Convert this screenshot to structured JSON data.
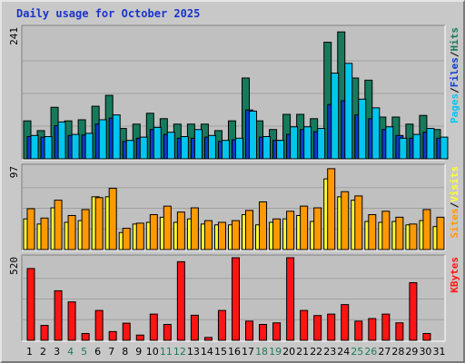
{
  "title": "Daily usage for October 2025",
  "colors": {
    "pages": "#00c6ee",
    "files": "#0a3cd2",
    "hits": "#177a5d",
    "visits": "#ffff30",
    "sites": "#ff9900",
    "kbytes": "#ff1414",
    "weekend_label": "#1f7a55",
    "weekday_label": "#000000",
    "separator": "#000000"
  },
  "chart_data": [
    {
      "type": "bar",
      "name": "hits-files-pages",
      "categories": [
        "1",
        "2",
        "3",
        "4",
        "5",
        "6",
        "7",
        "8",
        "9",
        "10",
        "11",
        "12",
        "13",
        "14",
        "15",
        "16",
        "17",
        "18",
        "19",
        "20",
        "21",
        "22",
        "23",
        "24",
        "25",
        "26",
        "27",
        "28",
        "29",
        "30",
        "31"
      ],
      "weekend_days": [
        "4",
        "5",
        "11",
        "12",
        "18",
        "19",
        "25",
        "26"
      ],
      "ymax": 241,
      "ytick_label": "241",
      "legend": [
        {
          "text": "Pages",
          "color": "#00c6ee"
        },
        {
          "text": "/",
          "color": "#000000"
        },
        {
          "text": "Files",
          "color": "#0a3cd2"
        },
        {
          "text": "/",
          "color": "#000000"
        },
        {
          "text": "Hits",
          "color": "#177a5d"
        }
      ],
      "series": [
        {
          "name": "Hits",
          "color": "#177a5d",
          "values": [
            70,
            52,
            95,
            70,
            72,
            97,
            117,
            56,
            64,
            84,
            74,
            64,
            64,
            64,
            52,
            70,
            149,
            70,
            54,
            82,
            82,
            74,
            215,
            234,
            149,
            145,
            77,
            77,
            64,
            80,
            54
          ]
        },
        {
          "name": "Files",
          "color": "#0a3cd2",
          "values": [
            41,
            40,
            61,
            43,
            44,
            64,
            75,
            32,
            38,
            54,
            45,
            38,
            38,
            40,
            32,
            35,
            90,
            40,
            34,
            45,
            54,
            50,
            100,
            107,
            81,
            74,
            54,
            43,
            38,
            49,
            38
          ]
        },
        {
          "name": "Pages",
          "color": "#00c6ee",
          "values": [
            43,
            41,
            68,
            45,
            47,
            72,
            81,
            34,
            40,
            58,
            49,
            41,
            54,
            43,
            34,
            38,
            88,
            41,
            34,
            59,
            59,
            56,
            158,
            176,
            110,
            94,
            59,
            38,
            45,
            56,
            40
          ]
        }
      ]
    },
    {
      "type": "bar",
      "name": "visits-sites",
      "categories": [
        "1",
        "2",
        "3",
        "4",
        "5",
        "6",
        "7",
        "8",
        "9",
        "10",
        "11",
        "12",
        "13",
        "14",
        "15",
        "16",
        "17",
        "18",
        "19",
        "20",
        "21",
        "22",
        "23",
        "24",
        "25",
        "26",
        "27",
        "28",
        "29",
        "30",
        "31"
      ],
      "ymax": 97,
      "ytick_label": "97",
      "legend": [
        {
          "text": "Sites",
          "color": "#ff9900"
        },
        {
          "text": "/",
          "color": "#000000"
        },
        {
          "text": "Visits",
          "color": "#ffff30"
        }
      ],
      "series": [
        {
          "name": "Visits",
          "color": "#ffff30",
          "values": [
            36,
            30,
            49,
            32,
            34,
            62,
            62,
            20,
            30,
            32,
            38,
            32,
            36,
            30,
            29,
            29,
            41,
            29,
            32,
            36,
            40,
            33,
            83,
            62,
            58,
            33,
            32,
            33,
            29,
            34,
            27
          ]
        },
        {
          "name": "Sites",
          "color": "#ff9900",
          "values": [
            48,
            37,
            58,
            40,
            47,
            61,
            72,
            25,
            31,
            41,
            51,
            44,
            49,
            34,
            32,
            34,
            46,
            56,
            36,
            45,
            51,
            49,
            95,
            68,
            63,
            41,
            45,
            38,
            30,
            47,
            38
          ]
        }
      ]
    },
    {
      "type": "bar",
      "name": "kbytes",
      "categories": [
        "1",
        "2",
        "3",
        "4",
        "5",
        "6",
        "7",
        "8",
        "9",
        "10",
        "11",
        "12",
        "13",
        "14",
        "15",
        "16",
        "17",
        "18",
        "19",
        "20",
        "21",
        "22",
        "23",
        "24",
        "25",
        "26",
        "27",
        "28",
        "29",
        "30",
        "31"
      ],
      "ymax": 520,
      "ytick_label": "520",
      "legend": [
        {
          "text": "KBytes",
          "color": "#ff1414"
        }
      ],
      "series": [
        {
          "name": "KBytes",
          "color": "#ff1414",
          "values": [
            452,
            94,
            312,
            242,
            43,
            188,
            55,
            108,
            33,
            165,
            100,
            495,
            158,
            18,
            188,
            520,
            121,
            100,
            110,
            520,
            188,
            156,
            165,
            225,
            121,
            137,
            165,
            110,
            363,
            43,
            0
          ]
        }
      ]
    }
  ]
}
